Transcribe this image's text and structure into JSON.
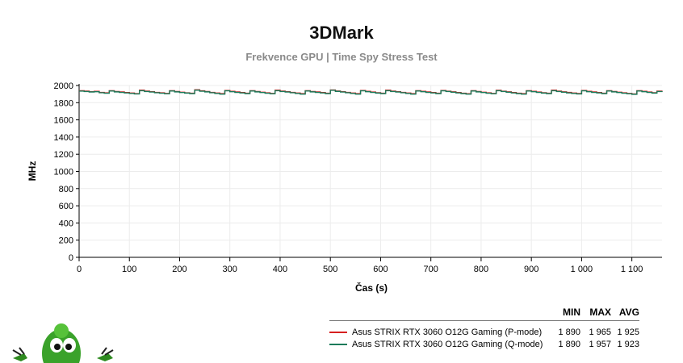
{
  "title": "3DMark",
  "subtitle": "Frekvence GPU | Time Spy Stress Test",
  "chart_data": {
    "type": "line",
    "title": "3DMark",
    "subtitle": "Frekvence GPU | Time Spy Stress Test",
    "xlabel": "Čas (s)",
    "ylabel": "MHz",
    "xlim": [
      0,
      1160
    ],
    "ylim": [
      0,
      2000
    ],
    "x_ticks": [
      0,
      100,
      200,
      300,
      400,
      500,
      600,
      700,
      800,
      900,
      1000,
      1100
    ],
    "x_tick_labels": [
      "0",
      "100",
      "200",
      "300",
      "400",
      "500",
      "600",
      "700",
      "800",
      "900",
      "1 000",
      "1 100"
    ],
    "y_ticks": [
      0,
      200,
      400,
      600,
      800,
      1000,
      1200,
      1400,
      1600,
      1800,
      2000
    ],
    "y_tick_labels": [
      "0",
      "200",
      "400",
      "600",
      "800",
      "1000",
      "1200",
      "1400",
      "1600",
      "1800",
      "2000"
    ],
    "grid": true,
    "legend_placement": "bottom-right",
    "series": [
      {
        "name": "Asus STRIX RTX 3060 O12G Gaming (P-mode)",
        "color": "#d62020",
        "min": 1890,
        "max": 1965,
        "avg": 1925,
        "x": [
          0,
          10,
          20,
          30,
          40,
          50,
          60,
          70,
          80,
          90,
          100,
          110,
          120,
          130,
          140,
          150,
          160,
          170,
          180,
          190,
          200,
          210,
          220,
          230,
          240,
          250,
          260,
          270,
          280,
          290,
          300,
          310,
          320,
          330,
          340,
          350,
          360,
          370,
          380,
          390,
          400,
          410,
          420,
          430,
          440,
          450,
          460,
          470,
          480,
          490,
          500,
          510,
          520,
          530,
          540,
          550,
          560,
          570,
          580,
          590,
          600,
          610,
          620,
          630,
          640,
          650,
          660,
          670,
          680,
          690,
          700,
          710,
          720,
          730,
          740,
          750,
          760,
          770,
          780,
          790,
          800,
          810,
          820,
          830,
          840,
          850,
          860,
          870,
          880,
          890,
          900,
          910,
          920,
          930,
          940,
          950,
          960,
          970,
          980,
          990,
          1000,
          1010,
          1020,
          1030,
          1040,
          1050,
          1060,
          1070,
          1080,
          1090,
          1100,
          1110,
          1120,
          1130,
          1140,
          1150,
          1160
        ],
        "y": [
          1940,
          1935,
          1928,
          1932,
          1920,
          1915,
          1940,
          1930,
          1925,
          1918,
          1912,
          1905,
          1945,
          1935,
          1928,
          1920,
          1915,
          1908,
          1940,
          1930,
          1922,
          1915,
          1910,
          1950,
          1938,
          1930,
          1920,
          1912,
          1905,
          1942,
          1932,
          1925,
          1918,
          1910,
          1940,
          1930,
          1922,
          1915,
          1908,
          1945,
          1935,
          1928,
          1920,
          1912,
          1905,
          1940,
          1930,
          1925,
          1918,
          1910,
          1948,
          1936,
          1928,
          1920,
          1912,
          1905,
          1942,
          1932,
          1924,
          1916,
          1910,
          1945,
          1935,
          1928,
          1920,
          1912,
          1905,
          1940,
          1932,
          1925,
          1918,
          1910,
          1942,
          1934,
          1926,
          1918,
          1910,
          1904,
          1940,
          1930,
          1922,
          1915,
          1908,
          1944,
          1934,
          1926,
          1918,
          1910,
          1905,
          1940,
          1932,
          1924,
          1916,
          1910,
          1945,
          1935,
          1927,
          1919,
          1912,
          1906,
          1942,
          1932,
          1925,
          1918,
          1910,
          1940,
          1930,
          1922,
          1915,
          1908,
          1902,
          1940,
          1932,
          1924,
          1916,
          1935,
          1940
        ]
      },
      {
        "name": "Asus STRIX RTX 3060 O12G Gaming (Q-mode)",
        "color": "#1a7a5a",
        "min": 1890,
        "max": 1957,
        "avg": 1923,
        "x": [
          0,
          10,
          20,
          30,
          40,
          50,
          60,
          70,
          80,
          90,
          100,
          110,
          120,
          130,
          140,
          150,
          160,
          170,
          180,
          190,
          200,
          210,
          220,
          230,
          240,
          250,
          260,
          270,
          280,
          290,
          300,
          310,
          320,
          330,
          340,
          350,
          360,
          370,
          380,
          390,
          400,
          410,
          420,
          430,
          440,
          450,
          460,
          470,
          480,
          490,
          500,
          510,
          520,
          530,
          540,
          550,
          560,
          570,
          580,
          590,
          600,
          610,
          620,
          630,
          640,
          650,
          660,
          670,
          680,
          690,
          700,
          710,
          720,
          730,
          740,
          750,
          760,
          770,
          780,
          790,
          800,
          810,
          820,
          830,
          840,
          850,
          860,
          870,
          880,
          890,
          900,
          910,
          920,
          930,
          940,
          950,
          960,
          970,
          980,
          990,
          1000,
          1010,
          1020,
          1030,
          1040,
          1050,
          1060,
          1070,
          1080,
          1090,
          1100,
          1110,
          1120,
          1130,
          1140,
          1150,
          1160
        ],
        "y": [
          1935,
          1930,
          1925,
          1928,
          1916,
          1910,
          1936,
          1926,
          1920,
          1914,
          1908,
          1902,
          1940,
          1930,
          1924,
          1916,
          1910,
          1904,
          1936,
          1926,
          1918,
          1912,
          1906,
          1945,
          1934,
          1926,
          1916,
          1908,
          1900,
          1938,
          1928,
          1920,
          1914,
          1906,
          1936,
          1926,
          1918,
          1910,
          1904,
          1940,
          1930,
          1924,
          1916,
          1908,
          1900,
          1936,
          1926,
          1920,
          1914,
          1906,
          1944,
          1932,
          1924,
          1916,
          1908,
          1900,
          1938,
          1928,
          1920,
          1912,
          1906,
          1940,
          1930,
          1924,
          1916,
          1908,
          1900,
          1936,
          1928,
          1920,
          1914,
          1906,
          1938,
          1930,
          1922,
          1914,
          1906,
          1900,
          1936,
          1926,
          1918,
          1910,
          1904,
          1940,
          1930,
          1922,
          1914,
          1906,
          1900,
          1936,
          1928,
          1920,
          1912,
          1906,
          1940,
          1930,
          1922,
          1914,
          1908,
          1902,
          1938,
          1928,
          1920,
          1914,
          1906,
          1936,
          1926,
          1918,
          1910,
          1904,
          1898,
          1936,
          1928,
          1920,
          1912,
          1930,
          1936
        ]
      }
    ]
  },
  "stats_table": {
    "headers": {
      "min": "MIN",
      "max": "MAX",
      "avg": "AVG"
    },
    "rows": [
      {
        "name": "Asus STRIX RTX 3060 O12G Gaming (P-mode)",
        "min": "1 890",
        "max": "1 965",
        "avg": "1 925",
        "color": "#d62020"
      },
      {
        "name": "Asus STRIX RTX 3060 O12G Gaming (Q-mode)",
        "min": "1 890",
        "max": "1 957",
        "avg": "1 923",
        "color": "#1a7a5a"
      }
    ]
  },
  "mascot": {
    "icon": "green-alien-mascot-icon",
    "color": "#3aa22a"
  }
}
